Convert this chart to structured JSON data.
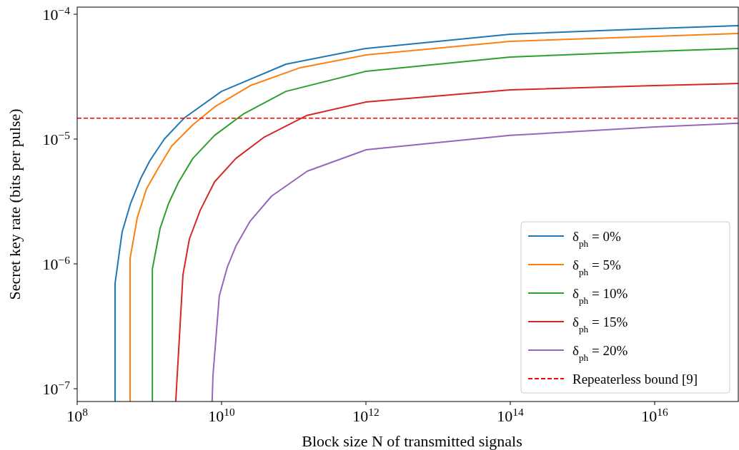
{
  "chart_data": {
    "type": "line",
    "xlabel": "Block size N of transmitted signals",
    "ylabel": "Secret key rate (bits per pulse)",
    "log": "xy",
    "grid": false,
    "legend": "bottom right",
    "line_style": "solid",
    "marker": "none",
    "xlim": [
      100000000.0,
      1.44e+17
    ],
    "ylim": [
      7.9e-08,
      0.000114
    ],
    "xticks": [
      {
        "value": 100000000.0,
        "label": "10$^{8}$"
      },
      {
        "value": 10000000000.0,
        "label": "10$^{10}$"
      },
      {
        "value": 1000000000000.0,
        "label": "10$^{12}$"
      },
      {
        "value": 100000000000000.0,
        "label": "10$^{14}$"
      },
      {
        "value": 1e+16,
        "label": "10$^{16}$"
      }
    ],
    "yticks": [
      {
        "value": 1e-07,
        "label": "10$^{−7}$"
      },
      {
        "value": 1e-06,
        "label": "10$^{−6}$"
      },
      {
        "value": 1e-05,
        "label": "10$^{−5}$"
      },
      {
        "value": 0.0001,
        "label": "10$^{−4}$"
      }
    ],
    "series": [
      {
        "name": "δ$_{ph}$ = 0%",
        "color": "#1f77b4",
        "x": [
          335000000.0,
          335000000.0,
          420000000.0,
          550000000.0,
          760000000.0,
          1020000000.0,
          1610000000.0,
          3060000000.0,
          10000000000.0,
          78000000000.0,
          1000000000000.0,
          100000000000000.0,
          1e+16,
          1.44e+17
        ],
        "values": [
          7.9e-08,
          7e-07,
          1.81e-06,
          3.06e-06,
          4.85e-06,
          6.74e-06,
          1e-05,
          1.48e-05,
          2.41e-05,
          3.98e-05,
          5.32e-05,
          6.92e-05,
          7.69e-05,
          8.11e-05
        ]
      },
      {
        "name": "δ$_{ph}$ = 5%",
        "color": "#ff7f0e",
        "x": [
          540000000.0,
          540000000.0,
          680000000.0,
          910000000.0,
          1290000000.0,
          2030000000.0,
          4000000000.0,
          8000000000.0,
          25000000000.0,
          123000000000.0,
          1000000000000.0,
          100000000000000.0,
          1e+16,
          1.44e+17
        ],
        "values": [
          7.9e-08,
          1.1e-06,
          2.35e-06,
          3.98e-06,
          5.68e-06,
          8.77e-06,
          1.3e-05,
          1.81e-05,
          2.68e-05,
          3.73e-05,
          4.72e-05,
          6.07e-05,
          6.65e-05,
          7.01e-05
        ]
      },
      {
        "name": "δ$_{ph}$ = 10%",
        "color": "#2ca02c",
        "x": [
          1100000000.0,
          1100000000.0,
          1410000000.0,
          1850000000.0,
          2550000000.0,
          4000000000.0,
          8000000000.0,
          19800000000.0,
          78000000000.0,
          1000000000000.0,
          100000000000000.0,
          1e+16,
          1.44e+17
        ],
        "values": [
          7.9e-08,
          9.1e-07,
          1.93e-06,
          3.06e-06,
          4.54e-06,
          7e-06,
          1.07e-05,
          1.58e-05,
          2.41e-05,
          3.49e-05,
          4.54e-05,
          5.05e-05,
          5.32e-05
        ]
      },
      {
        "name": "δ$_{ph}$ = 15%",
        "color": "#d62728",
        "x": [
          2320000000.0,
          2920000000.0,
          3580000000.0,
          5050000000.0,
          8000000000.0,
          15800000000.0,
          39300000000.0,
          154000000000.0,
          1000000000000.0,
          100000000000000.0,
          1e+16,
          1.44e+17
        ],
        "values": [
          7.9e-08,
          8.2e-07,
          1.58e-06,
          2.68e-06,
          4.54e-06,
          7e-06,
          1.04e-05,
          1.55e-05,
          1.98e-05,
          2.48e-05,
          2.68e-05,
          2.79e-05
        ]
      },
      {
        "name": "δ$_{ph}$ = 20%",
        "color": "#9467bd",
        "x": [
          7400000000.0,
          7600000000.0,
          9300000000.0,
          12000000000.0,
          15800000000.0,
          24900000000.0,
          49300000000.0,
          154000000000.0,
          1000000000000.0,
          100000000000000.0,
          1e+16,
          1.44e+17
        ],
        "values": [
          7.9e-08,
          1.27e-07,
          5.53e-07,
          9.4e-07,
          1.39e-06,
          2.2e-06,
          3.49e-06,
          5.53e-06,
          8.2e-06,
          1.07e-05,
          1.25e-05,
          1.34e-05
        ]
      }
    ],
    "ref_lines": [
      {
        "axis": "y",
        "value": 1.47e-05,
        "label": "Repeaterless bound [9]",
        "color": "#ff0000",
        "line_style": "dashed"
      }
    ]
  }
}
